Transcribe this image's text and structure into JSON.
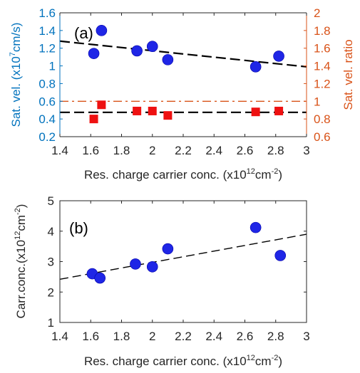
{
  "chart_data": [
    {
      "panel_label": "(a)",
      "type": "scatter",
      "xlabel": "Res. charge carrier conc. (x10",
      "xlabel_sup": "12",
      "xlabel_mid": "cm",
      "xlabel_sup2": "-2",
      "xlabel_end": ")",
      "xlim": [
        1.4,
        3.0
      ],
      "xticks": [
        "1.4",
        "1.6",
        "1.8",
        "2",
        "2.2",
        "2.4",
        "2.6",
        "2.8",
        "3"
      ],
      "xtick_values": [
        1.4,
        1.6,
        1.8,
        2.0,
        2.2,
        2.4,
        2.6,
        2.8,
        3.0
      ],
      "left_axis": {
        "label": "Sat. vel. (x10",
        "label_sup": "7",
        "label_end": "cm/s)",
        "ylim": [
          0.2,
          1.6
        ],
        "ticks": [
          "0.2",
          "0.4",
          "0.6",
          "0.8",
          "1",
          "1.2",
          "1.4",
          "1.6"
        ],
        "tick_values": [
          0.2,
          0.4,
          0.6,
          0.8,
          1.0,
          1.2,
          1.4,
          1.6
        ],
        "color": "#0072BD"
      },
      "right_axis": {
        "label": "Sat. vel. ratio",
        "ylim": [
          0.6,
          2.0
        ],
        "ticks": [
          "0.6",
          "0.8",
          "1",
          "1.2",
          "1.4",
          "1.6",
          "1.8",
          "2"
        ],
        "tick_values": [
          0.6,
          0.8,
          1.0,
          1.2,
          1.4,
          1.6,
          1.8,
          2.0
        ],
        "color": "#D95319"
      },
      "series": [
        {
          "axis": "left",
          "marker": "circle",
          "color": "#1f26e6",
          "x": [
            1.62,
            1.67,
            1.9,
            2.0,
            2.1,
            2.67,
            2.82
          ],
          "y": [
            1.14,
            1.4,
            1.17,
            1.22,
            1.07,
            0.99,
            1.11
          ]
        },
        {
          "axis": "right",
          "marker": "square",
          "color": "#ee1111",
          "x": [
            1.62,
            1.67,
            1.9,
            2.0,
            2.1,
            2.67,
            2.82
          ],
          "y": [
            0.8,
            0.96,
            0.89,
            0.89,
            0.84,
            0.88,
            0.89
          ]
        }
      ],
      "fit_lines": [
        {
          "axis": "left",
          "style": "dashed",
          "color": "#000000",
          "x": [
            1.4,
            3.0
          ],
          "y": [
            1.28,
            0.99
          ]
        },
        {
          "axis": "left",
          "style": "dashed",
          "color": "#000000",
          "x": [
            1.4,
            3.0
          ],
          "y": [
            0.475,
            0.475
          ]
        },
        {
          "axis": "right",
          "style": "dash-dot",
          "color": "#D95319",
          "x": [
            1.4,
            3.0
          ],
          "y": [
            1.0,
            1.0
          ]
        }
      ]
    },
    {
      "panel_label": "(b)",
      "type": "scatter",
      "xlabel": "Res. charge carrier conc. (x10",
      "xlabel_sup": "12",
      "xlabel_mid": "cm",
      "xlabel_sup2": "-2",
      "xlabel_end": ")",
      "xlim": [
        1.4,
        3.0
      ],
      "xticks": [
        "1.4",
        "1.6",
        "1.8",
        "2",
        "2.2",
        "2.4",
        "2.6",
        "2.8",
        "3"
      ],
      "xtick_values": [
        1.4,
        1.6,
        1.8,
        2.0,
        2.2,
        2.4,
        2.6,
        2.8,
        3.0
      ],
      "ylabel": "Carr.conc.(x10",
      "ylabel_sup": "12",
      "ylabel_mid": "cm",
      "ylabel_sup2": "-2",
      "ylabel_end": ")",
      "ylim": [
        1.0,
        5.0
      ],
      "yticks": [
        "1",
        "2",
        "3",
        "4",
        "5"
      ],
      "ytick_values": [
        1,
        2,
        3,
        4,
        5
      ],
      "series": [
        {
          "marker": "circle",
          "color": "#1f26e6",
          "x": [
            1.61,
            1.66,
            1.89,
            2.0,
            2.1,
            2.67,
            2.83
          ],
          "y": [
            2.6,
            2.46,
            2.92,
            2.83,
            3.42,
            4.12,
            3.2
          ]
        }
      ],
      "fit_lines": [
        {
          "style": "dashed",
          "color": "#000000",
          "x": [
            1.4,
            3.0
          ],
          "y": [
            2.42,
            3.9
          ]
        }
      ]
    }
  ]
}
